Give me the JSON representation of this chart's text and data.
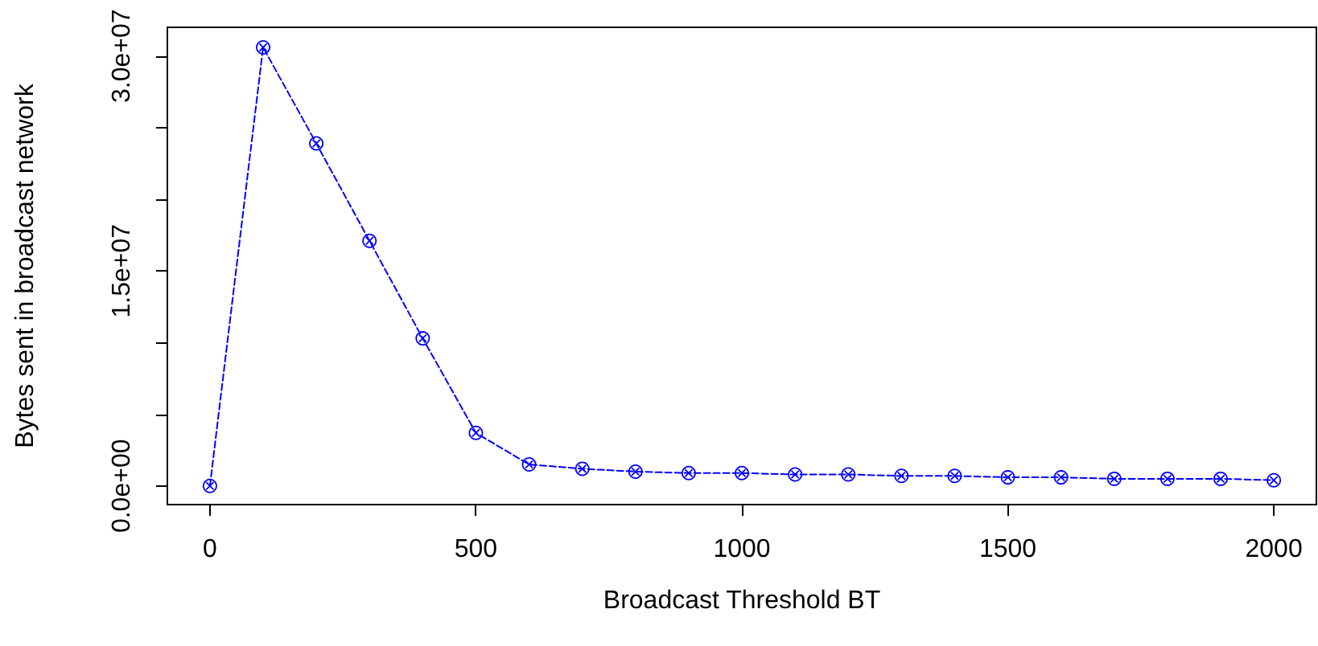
{
  "chart_data": {
    "type": "line",
    "xlabel": "Broadcast Threshold BT",
    "ylabel": "Bytes sent in broadcast network",
    "x": [
      0,
      100,
      200,
      300,
      400,
      500,
      600,
      700,
      800,
      900,
      1000,
      1100,
      1200,
      1300,
      1400,
      1500,
      1600,
      1700,
      1800,
      1900,
      2000
    ],
    "series": [
      {
        "color": "#0000ff",
        "values": [
          0,
          30600000,
          23900000,
          17100000,
          10300000,
          3700000,
          1500000,
          1200000,
          1000000,
          900000,
          900000,
          800000,
          800000,
          700000,
          700000,
          600000,
          600000,
          500000,
          500000,
          500000,
          400000
        ]
      }
    ],
    "xlim": [
      -80,
      2080
    ],
    "xticks": [
      0,
      500,
      1000,
      1500,
      2000
    ],
    "ylim": [
      -1300000,
      32000000
    ],
    "yticks": [
      {
        "value": 0,
        "label": "0.0e+00"
      },
      {
        "value": 5000000,
        "label": null
      },
      {
        "value": 10000000,
        "label": null
      },
      {
        "value": 15000000,
        "label": "1.5e+07"
      },
      {
        "value": 20000000,
        "label": null
      },
      {
        "value": 25000000,
        "label": null
      },
      {
        "value": 30000000,
        "label": "3.0e+07"
      }
    ],
    "grid": false,
    "marker": "circle",
    "line_style": "dashed"
  }
}
